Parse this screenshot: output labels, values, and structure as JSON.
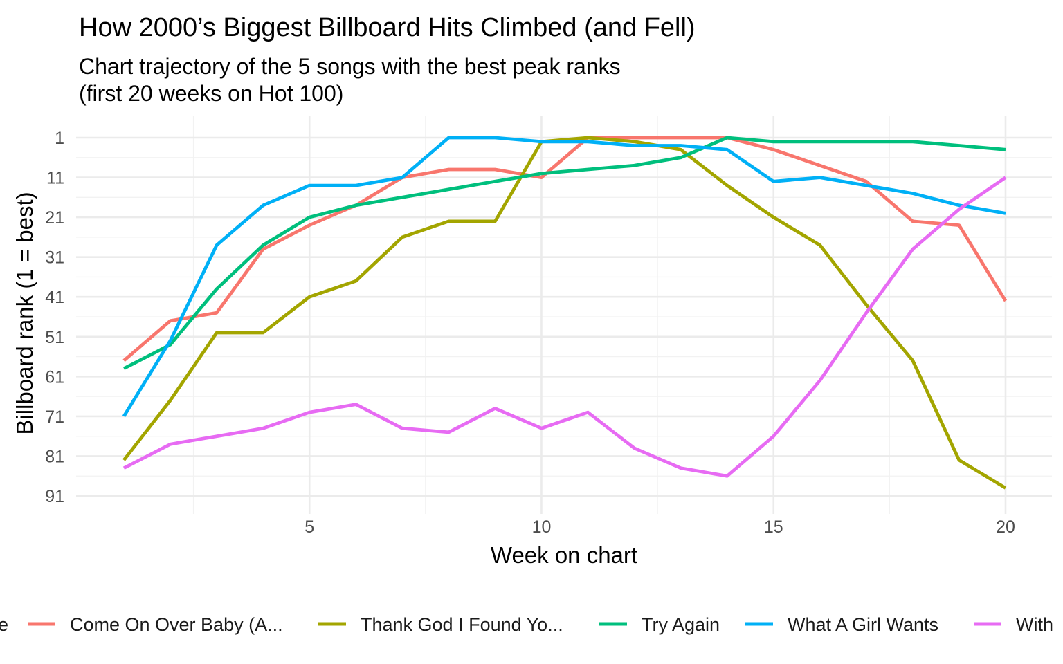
{
  "chart_data": {
    "type": "line",
    "title": "How 2000’s Biggest Billboard Hits Climbed (and Fell)",
    "subtitle_lines": [
      "Chart trajectory of the 5 songs with the best peak ranks",
      "(first 20 weeks on Hot 100)"
    ],
    "xlabel": "Week on chart",
    "ylabel": "Billboard rank (1 = best)",
    "xlim": [
      0.1,
      20.9
    ],
    "ylim": [
      1,
      91
    ],
    "y_reversed": true,
    "x_ticks": [
      5,
      10,
      15,
      20
    ],
    "x_minor_ticks": [
      2.5,
      7.5,
      12.5,
      17.5
    ],
    "y_ticks": [
      1,
      11,
      21,
      31,
      41,
      51,
      61,
      71,
      81,
      91
    ],
    "y_minor_ticks": [
      6,
      16,
      26,
      36,
      46,
      56,
      66,
      76,
      86
    ],
    "grid": true,
    "legend_position": "bottom",
    "legend_label": "e",
    "x": [
      1,
      2,
      3,
      4,
      5,
      6,
      7,
      8,
      9,
      10,
      11,
      12,
      13,
      14,
      15,
      16,
      17,
      18,
      19,
      20
    ],
    "series": [
      {
        "name": "Come On Over Baby (A...",
        "color": "#F8766D",
        "values": [
          57,
          47,
          45,
          29,
          23,
          18,
          11,
          9,
          9,
          11,
          1,
          1,
          1,
          1,
          4,
          8,
          12,
          22,
          23,
          42
        ]
      },
      {
        "name": "Thank God I Found Yo...",
        "color": "#A3A500",
        "values": [
          82,
          67,
          50,
          50,
          41,
          37,
          26,
          22,
          22,
          2,
          1,
          2,
          4,
          13,
          21,
          28,
          43,
          57,
          82,
          89
        ]
      },
      {
        "name": "Try Again",
        "color": "#00BF7D",
        "values": [
          59,
          53,
          39,
          28,
          21,
          18,
          16,
          14,
          12,
          10,
          9,
          8,
          6,
          1,
          2,
          2,
          2,
          2,
          3,
          4
        ]
      },
      {
        "name": "What A Girl Wants",
        "color": "#00B0F6",
        "values": [
          71,
          52,
          28,
          18,
          13,
          13,
          11,
          1,
          1,
          2,
          2,
          3,
          3,
          4,
          12,
          11,
          13,
          15,
          18,
          20
        ]
      },
      {
        "name": "With",
        "color": "#E76BF3",
        "values": [
          84,
          78,
          76,
          74,
          70,
          68,
          74,
          75,
          69,
          74,
          70,
          79,
          84,
          86,
          76,
          62,
          45,
          29,
          19,
          11
        ]
      }
    ]
  }
}
